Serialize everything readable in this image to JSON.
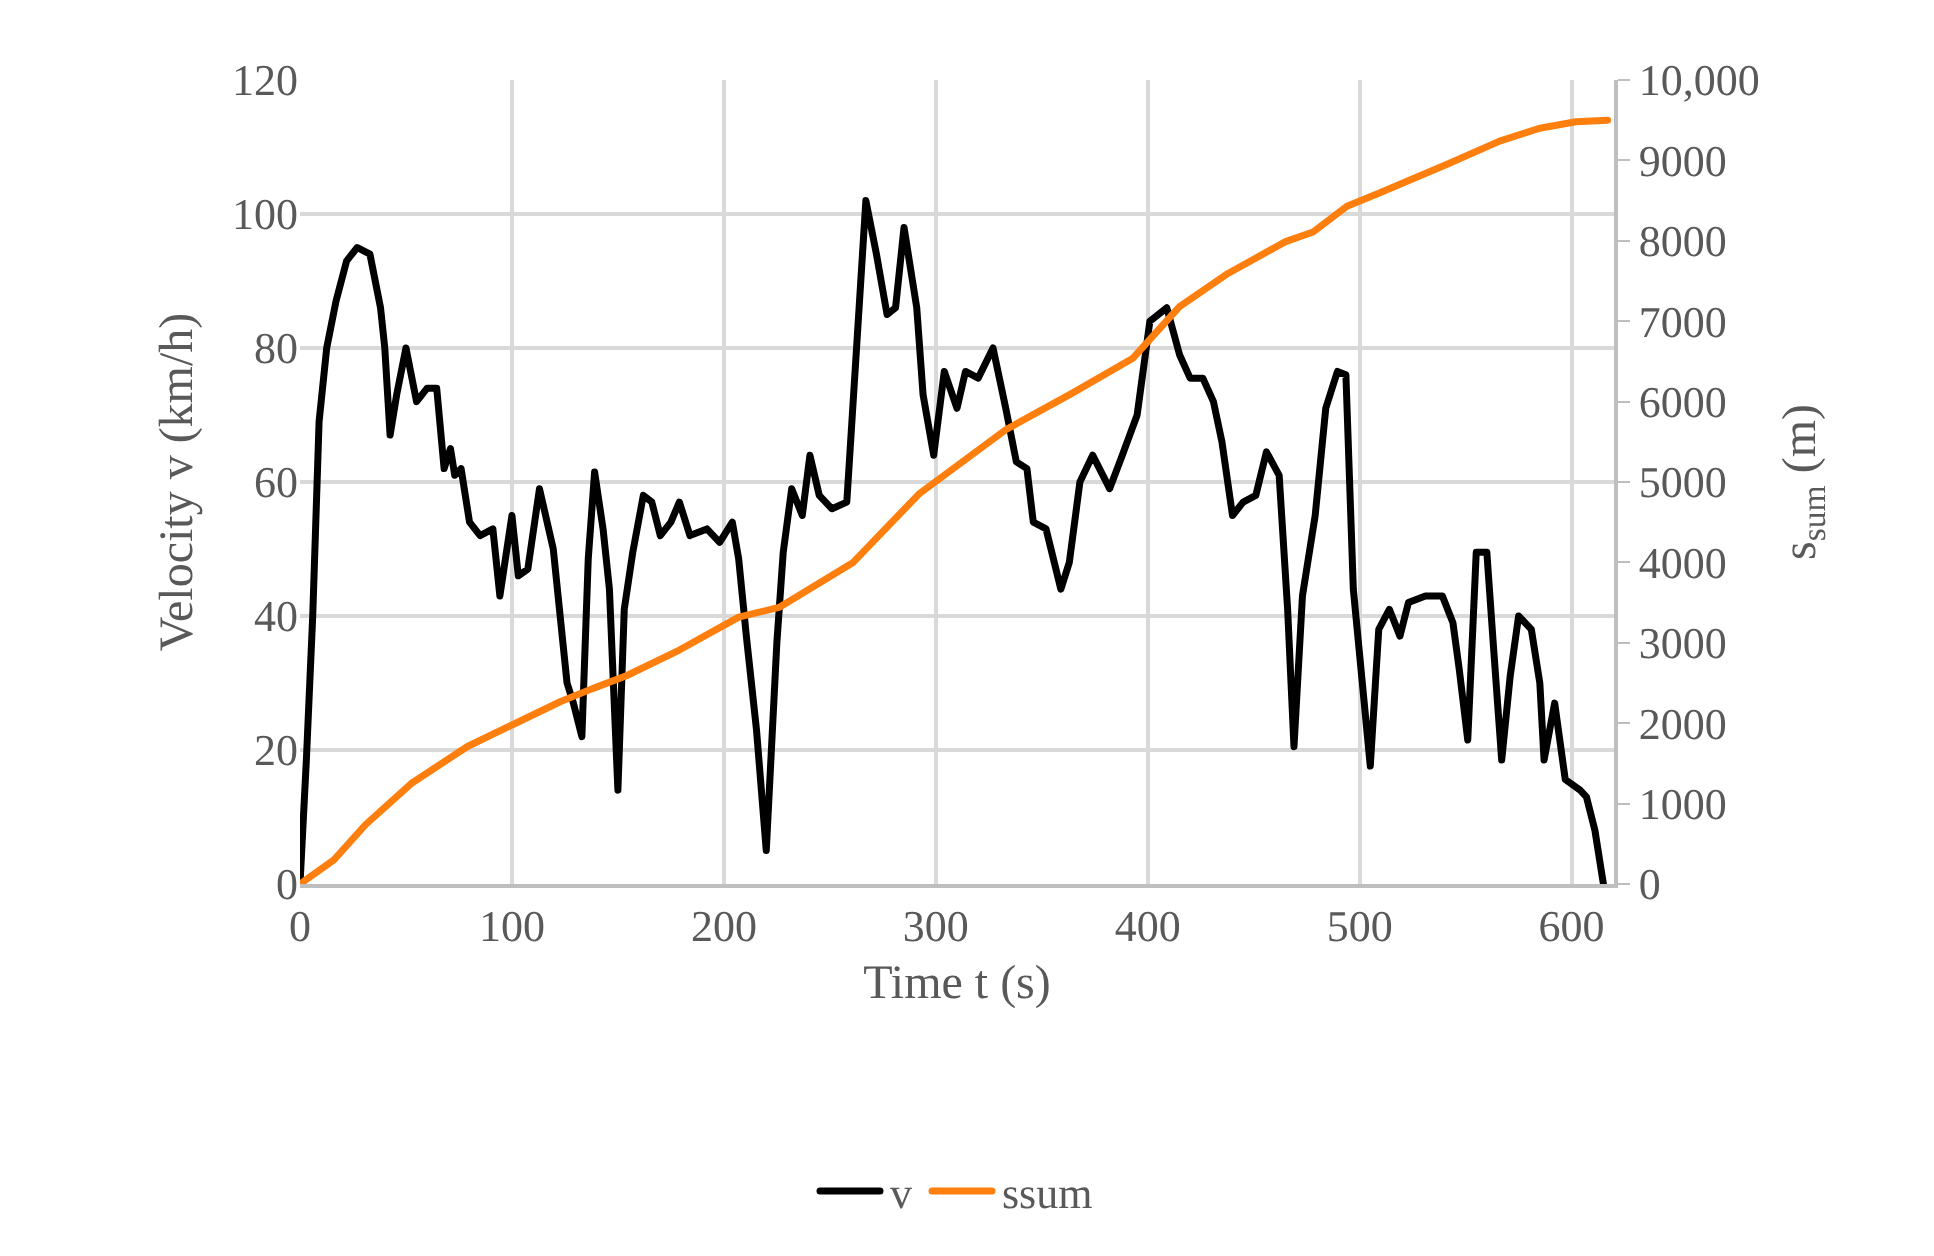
{
  "chart_data": {
    "type": "line",
    "xlabel": "Time t (s)",
    "ylabel": "Velocity v (km/h)",
    "y2label": "s$_{sum}$ (m)",
    "xlim": [
      0,
      620
    ],
    "xticks": [
      0,
      100,
      200,
      300,
      400,
      500,
      600
    ],
    "ylim": [
      0,
      120
    ],
    "yticks": [
      0,
      20,
      40,
      60,
      80,
      100,
      120
    ],
    "y2lim": [
      0,
      10000
    ],
    "y2ticks": [
      0,
      1000,
      2000,
      3000,
      4000,
      5000,
      6000,
      7000,
      8000,
      9000,
      {
        "value": 10000,
        "label": "10,000"
      }
    ],
    "grid": true,
    "legend": "bottom",
    "marker": "none",
    "line_style": "solid",
    "series": [
      {
        "name": "v",
        "color": "#000000",
        "x": [
          0,
          3,
          6,
          9,
          12.6,
          17,
          22,
          27,
          33,
          38,
          40,
          42.5,
          45.6,
          50,
          55,
          60,
          64.5,
          68,
          71,
          73,
          76,
          80,
          85,
          91,
          94.3,
          100,
          103,
          107.5,
          113,
          119.5,
          126,
          129,
          133,
          136,
          139,
          143,
          146,
          150,
          153,
          157,
          162,
          166,
          170,
          175,
          179,
          184,
          192,
          198,
          204,
          207,
          210.6,
          215.4,
          220,
          225,
          228,
          232,
          237,
          240.6,
          245,
          251,
          258,
          263,
          267,
          272,
          277,
          281,
          285,
          291,
          294,
          299,
          304,
          310,
          314,
          320,
          327,
          333,
          338,
          343,
          346,
          352,
          359,
          363,
          368,
          374,
          382,
          388,
          395,
          401,
          409,
          415,
          420,
          426,
          431,
          435,
          440,
          445,
          451,
          456,
          462,
          466,
          469,
          473,
          479,
          484,
          489.5,
          493.5,
          497,
          505,
          509,
          514,
          519,
          523,
          531,
          539,
          544,
          547,
          551,
          555,
          560,
          563,
          567,
          571,
          575,
          581,
          585,
          587,
          592,
          597,
          604,
          607,
          611,
          615
        ],
        "values": [
          0,
          18.5,
          40,
          69,
          80,
          87,
          93,
          95,
          94,
          86,
          80,
          67,
          73,
          80,
          72,
          74,
          74,
          62,
          65,
          61,
          62,
          54,
          52,
          53,
          43,
          55,
          46,
          47,
          59,
          50,
          30,
          27,
          22,
          48.5,
          61.5,
          53,
          44,
          14,
          41,
          49.5,
          58,
          57,
          52,
          54,
          57,
          52,
          53,
          51,
          54,
          48.5,
          37,
          23,
          5,
          36,
          49.5,
          59,
          55,
          64,
          58,
          56,
          57,
          82,
          102,
          94,
          85,
          86,
          98,
          86,
          73,
          64,
          76.5,
          71,
          76.5,
          75.5,
          80,
          71,
          63,
          62,
          54,
          53,
          44,
          48,
          60,
          64,
          59,
          64,
          70,
          84,
          86,
          79,
          75.5,
          75.5,
          72,
          66,
          55,
          57,
          58,
          64.5,
          61,
          41,
          20.5,
          43,
          55,
          71,
          76.5,
          76,
          44,
          17.6,
          38,
          41,
          37,
          42,
          43,
          43,
          39,
          32,
          21.5,
          49.5,
          49.5,
          36,
          18.5,
          31,
          40,
          38,
          30,
          18.5,
          27,
          15.6,
          14,
          13,
          8,
          0
        ]
      },
      {
        "name": "ssum",
        "color": "#ff7f0e",
        "axis": "y2",
        "x": [
          0,
          16,
          31,
          53,
          79,
          101,
          123,
          138,
          154,
          179,
          207,
          226,
          261,
          292,
          333,
          364,
          393,
          415,
          437,
          465,
          478,
          494,
          509,
          541,
          566,
          585,
          602,
          617
        ],
        "values": [
          0,
          300,
          740,
          1260,
          1710,
          1990,
          2270,
          2430,
          2590,
          2910,
          3320,
          3440,
          4000,
          4850,
          5650,
          6100,
          6540,
          7180,
          7580,
          7990,
          8110,
          8430,
          8590,
          8950,
          9240,
          9400,
          9480,
          9500
        ]
      }
    ]
  }
}
